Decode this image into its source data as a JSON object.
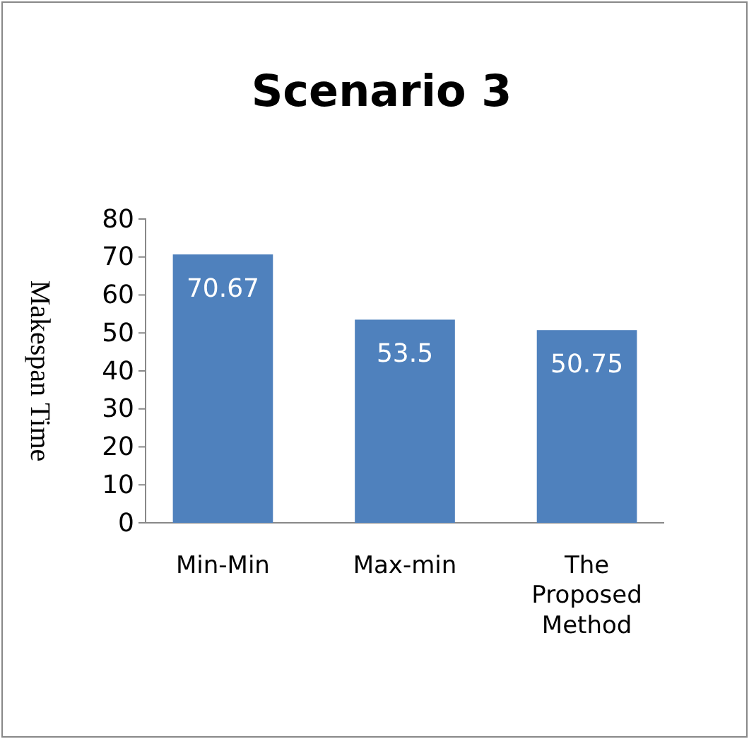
{
  "chart_data": {
    "type": "bar",
    "title": "Scenario 3",
    "ylabel": "Makespan Time",
    "categories": [
      "Min-Min",
      "Max-min",
      "The Proposed Method"
    ],
    "values": [
      70.67,
      53.5,
      50.75
    ],
    "color": "#4f81bd",
    "ylim": [
      0,
      80
    ],
    "yticks": [
      0,
      10,
      20,
      30,
      40,
      50,
      60,
      70,
      80
    ],
    "grid": false,
    "data_labels": true
  }
}
